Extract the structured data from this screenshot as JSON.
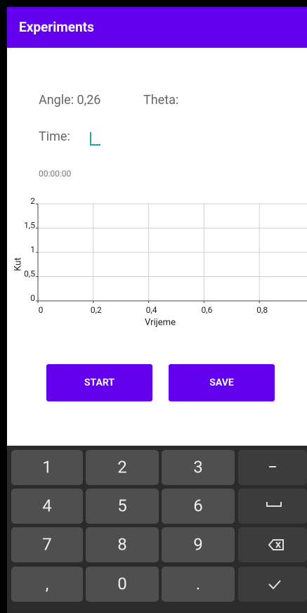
{
  "app_bar": {
    "title": "Experiments"
  },
  "angle_label": "Angle: 0,26",
  "theta_label": "Theta:",
  "time_label": "Time:",
  "timer": "00:00:00",
  "chart": {
    "type": "line",
    "x_label": "Vrijeme",
    "y_label": "Kut",
    "xlim": [
      0,
      1
    ],
    "ylim": [
      0,
      2
    ],
    "xticks": [
      0,
      {
        "value": 0.2,
        "label": "0,2"
      },
      {
        "value": 0.4,
        "label": "0,4"
      },
      {
        "value": 0.6,
        "label": "0,6"
      },
      {
        "value": 0.8,
        "label": "0,8"
      }
    ],
    "yticks": [
      0,
      {
        "value": 0.5,
        "label": "0,5"
      },
      1,
      {
        "value": 1.5,
        "label": "1,5"
      },
      2
    ],
    "grid": true
  },
  "buttons": [
    "START",
    "SAVE"
  ],
  "keyboard": {
    "keys": [
      "1",
      "2",
      "3",
      "−",
      "4",
      "5",
      "6",
      "7",
      "8",
      "9",
      ",",
      "0",
      "."
    ]
  }
}
